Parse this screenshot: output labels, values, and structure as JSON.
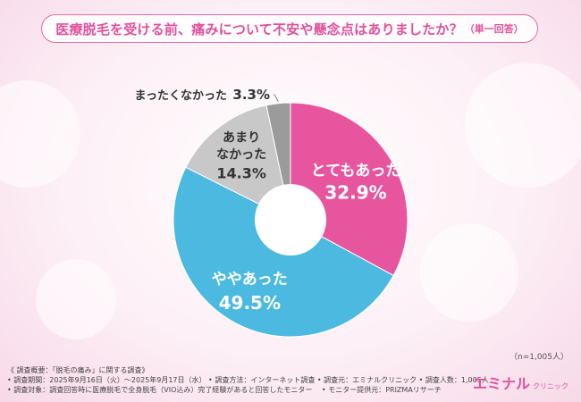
{
  "title": "医療脱毛を受ける前、痛みについて不安や懸念点はありましたか？",
  "title_suffix": "（単一回答）",
  "sample_note": "（n=1,005人）",
  "chart_data": {
    "type": "pie",
    "donut": true,
    "categories": [
      "とてもあった",
      "ややあった",
      "あまりなかった",
      "まったくなかった"
    ],
    "values": [
      32.9,
      49.5,
      14.3,
      3.3
    ],
    "value_labels": [
      "32.9%",
      "49.5%",
      "14.3%",
      "3.3%"
    ],
    "colors": [
      "#e8559f",
      "#4cb9e0",
      "#c8c8c8",
      "#9b9b9b"
    ],
    "label_colors": [
      "#ffffff",
      "#ffffff",
      "#333333",
      "#333333"
    ]
  },
  "footer": {
    "line1": "《 調査概要：「脱毛の痛み」に関する調査》",
    "line2": "• 調査期間：2025年9月16日（火）～2025年9月17日（水） • 調査方法：インターネット調査 • 調査元：エミナルクリニック • 調査人数：1,005人",
    "line3": "• 調査対象：調査回答時に医療脱毛で全身脱毛（VIO込み）完了経験があると回答したモニター　 • モニター提供元：PRIZMAリサーチ"
  },
  "brand": {
    "name": "エミナル",
    "sub": "クリニック"
  }
}
